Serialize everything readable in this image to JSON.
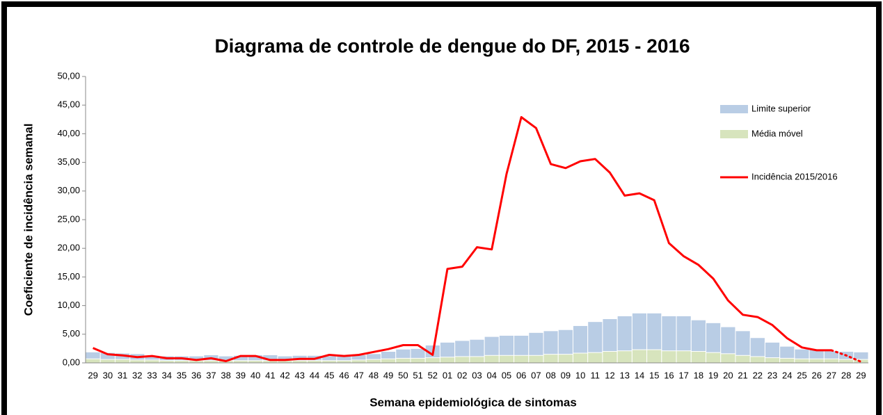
{
  "chart_data": {
    "type": "bar-line",
    "title": "Diagrama de controle de dengue do DF, 2015 - 2016",
    "x_label": "Semana epidemiológica de sintomas",
    "y_label": "Coeficiente de incidência semanal",
    "categories": [
      "29",
      "30",
      "31",
      "32",
      "33",
      "34",
      "35",
      "36",
      "37",
      "38",
      "39",
      "40",
      "41",
      "42",
      "43",
      "44",
      "45",
      "46",
      "47",
      "48",
      "49",
      "50",
      "51",
      "52",
      "01",
      "02",
      "03",
      "04",
      "05",
      "06",
      "07",
      "08",
      "09",
      "10",
      "11",
      "12",
      "13",
      "14",
      "15",
      "16",
      "17",
      "18",
      "19",
      "20",
      "21",
      "22",
      "23",
      "24",
      "25",
      "26",
      "27",
      "28",
      "29"
    ],
    "ylim": [
      0,
      50
    ],
    "yticks": [
      {
        "value": 0,
        "label": "0,00"
      },
      {
        "value": 5,
        "label": "5,00"
      },
      {
        "value": 10,
        "label": "10,00"
      },
      {
        "value": 15,
        "label": "15,00"
      },
      {
        "value": 20,
        "label": "20,00"
      },
      {
        "value": 25,
        "label": "25,00"
      },
      {
        "value": 30,
        "label": "30,00"
      },
      {
        "value": 35,
        "label": "35,00"
      },
      {
        "value": 40,
        "label": "40,00"
      },
      {
        "value": 45,
        "label": "45,00"
      },
      {
        "value": 50,
        "label": "50,00"
      }
    ],
    "legend": "right",
    "series": [
      {
        "name": "Limite superior",
        "kind": "bar",
        "color": "#b9cde5",
        "values": [
          1.9,
          1.8,
          1.7,
          1.6,
          1.3,
          1.2,
          1.2,
          1.2,
          1.4,
          1.2,
          1.3,
          1.4,
          1.4,
          1.2,
          1.3,
          1.3,
          1.2,
          1.3,
          1.4,
          1.6,
          2.0,
          2.4,
          2.5,
          3.1,
          3.6,
          3.9,
          4.1,
          4.6,
          4.8,
          4.8,
          5.3,
          5.6,
          5.8,
          6.5,
          7.2,
          7.7,
          8.2,
          8.7,
          8.7,
          8.2,
          8.2,
          7.5,
          7.0,
          6.3,
          5.6,
          4.4,
          3.6,
          2.9,
          2.4,
          2.3,
          2.1,
          2.0,
          1.9
        ]
      },
      {
        "name": "Média móvel",
        "kind": "bar",
        "color": "#d7e4bd",
        "values": [
          0.7,
          0.6,
          0.6,
          0.5,
          0.5,
          0.4,
          0.4,
          0.4,
          0.4,
          0.4,
          0.4,
          0.4,
          0.4,
          0.4,
          0.4,
          0.4,
          0.4,
          0.4,
          0.5,
          0.6,
          0.7,
          0.8,
          0.8,
          0.9,
          1.0,
          1.1,
          1.1,
          1.3,
          1.3,
          1.3,
          1.3,
          1.5,
          1.5,
          1.7,
          1.8,
          2.0,
          2.1,
          2.3,
          2.3,
          2.1,
          2.1,
          2.0,
          1.8,
          1.6,
          1.3,
          1.1,
          0.9,
          0.8,
          0.7,
          0.7,
          0.7,
          0.6,
          0.6
        ]
      },
      {
        "name": "Incidência 2015/2016",
        "kind": "line",
        "color": "#ff0000",
        "dotted_from": "27",
        "values": [
          2.6,
          1.5,
          1.3,
          1.0,
          1.2,
          0.8,
          0.8,
          0.5,
          0.8,
          0.3,
          1.2,
          1.2,
          0.5,
          0.5,
          0.7,
          0.7,
          1.4,
          1.2,
          1.4,
          1.9,
          2.4,
          3.1,
          3.1,
          1.4,
          16.4,
          16.8,
          20.2,
          19.8,
          33.0,
          42.9,
          41.0,
          34.7,
          34.0,
          35.2,
          35.6,
          33.2,
          29.2,
          29.6,
          28.4,
          20.9,
          18.6,
          17.1,
          14.7,
          10.9,
          8.4,
          8.0,
          6.6,
          4.3,
          2.7,
          2.2,
          2.2,
          1.3,
          0.2
        ]
      }
    ]
  }
}
